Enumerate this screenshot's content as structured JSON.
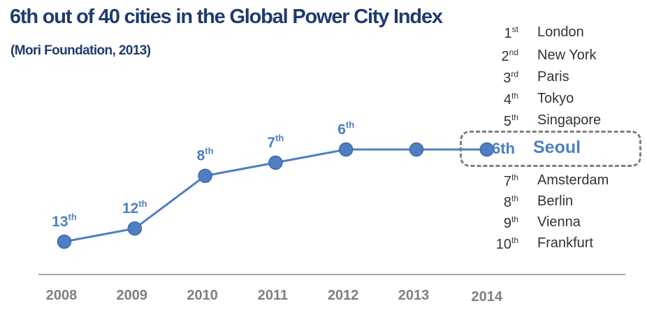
{
  "header": {
    "title": "6th out of 40 cities in the Global Power City Index",
    "subtitle": "(Mori Foundation, 2013)"
  },
  "colors": {
    "title": "#1f3b6e",
    "series": "#4f7fc1",
    "axis": "#a6a6a6",
    "year_labels": "#7f7f7f",
    "list_text": "#333333",
    "highlight_border": "#7f7f7f"
  },
  "chart_data": {
    "type": "line",
    "title": "6th out of 40 cities in the Global Power City Index",
    "subtitle": "(Mori Foundation, 2013)",
    "x": [
      "2008",
      "2009",
      "2010",
      "2011",
      "2012",
      "2013",
      "2014"
    ],
    "series": [
      {
        "values": [
          13,
          12,
          8,
          7,
          6,
          6,
          6
        ],
        "point_labels": [
          {
            "num": "13",
            "suf": "th"
          },
          {
            "num": "12",
            "suf": "th"
          },
          {
            "num": "8",
            "suf": "th"
          },
          {
            "num": "7",
            "suf": "th"
          },
          {
            "num": "6",
            "suf": "th"
          },
          null,
          null
        ]
      }
    ],
    "y_axis": "rank (inverted)",
    "grid": false,
    "legend": "none"
  },
  "ranking": {
    "list": [
      {
        "num": "1",
        "suf": "st",
        "city": "London"
      },
      {
        "num": "2",
        "suf": "nd",
        "city": "New York"
      },
      {
        "num": "3",
        "suf": "rd",
        "city": "Paris"
      },
      {
        "num": "4",
        "suf": "th",
        "city": "Tokyo"
      },
      {
        "num": "5",
        "suf": "th",
        "city": "Singapore"
      },
      {
        "num": "7",
        "suf": "th",
        "city": "Amsterdam"
      },
      {
        "num": "8",
        "suf": "th",
        "city": "Berlin"
      },
      {
        "num": "9",
        "suf": "th",
        "city": "Vienna"
      },
      {
        "num": "10",
        "suf": "th",
        "city": "Frankfurt"
      }
    ],
    "highlight": {
      "rank": "6th",
      "city": "Seoul"
    }
  }
}
